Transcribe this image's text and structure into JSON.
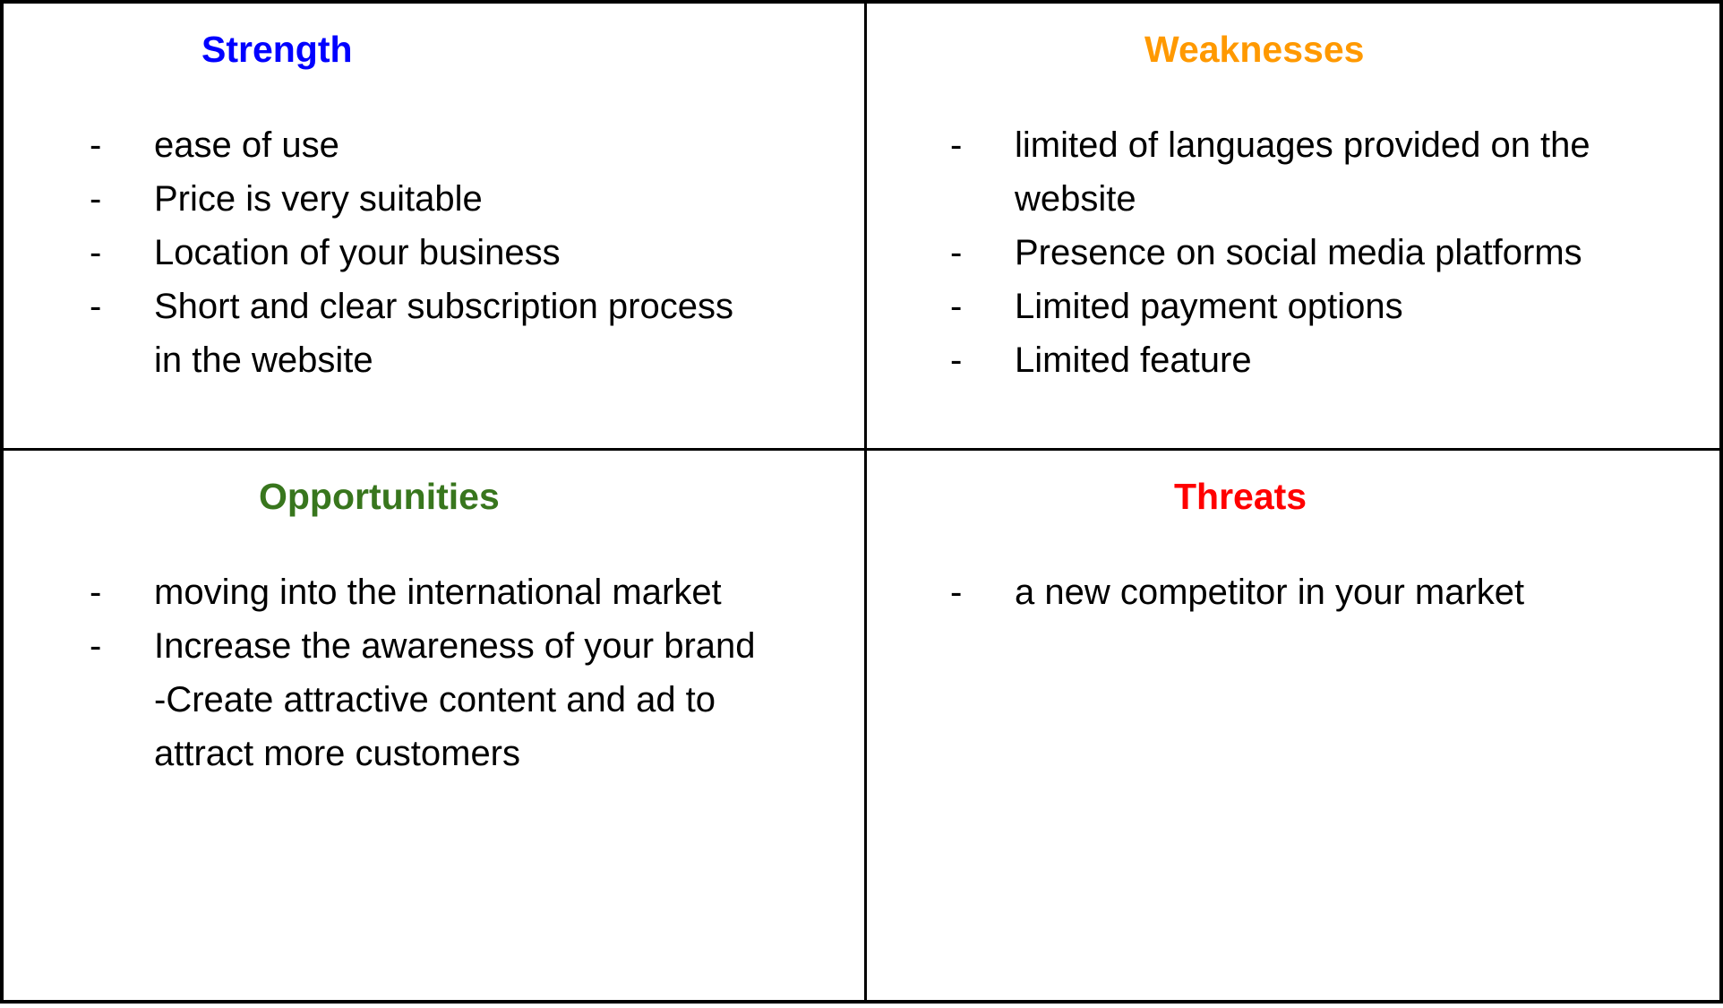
{
  "quadrants": {
    "strength": {
      "title": "Strength",
      "color": "#0000ff",
      "lines": [
        {
          "dash": "-",
          "text": "ease of use"
        },
        {
          "dash": "-",
          "text": "Price is very suitable"
        },
        {
          "dash": "-",
          "text": "Location of your business"
        },
        {
          "dash": "-",
          "text": "Short and clear subscription process"
        },
        {
          "dash": "",
          "text": "in the website"
        }
      ]
    },
    "weaknesses": {
      "title": "Weaknesses",
      "color": "#ff9900",
      "lines": [
        {
          "dash": "-",
          "text": "limited of languages provided on the"
        },
        {
          "dash": "",
          "text": "website"
        },
        {
          "dash": "-",
          "text": "Presence on social media platforms"
        },
        {
          "dash": "-",
          "text": "Limited payment options"
        },
        {
          "dash": "-",
          "text": "Limited feature"
        }
      ]
    },
    "opportunities": {
      "title": "Opportunities",
      "color": "#38761d",
      "lines": [
        {
          "dash": "-",
          "text": "moving into the international market"
        },
        {
          "dash": "-",
          "text": "Increase the awareness of your brand"
        },
        {
          "dash": "",
          "text": "-Create attractive content and ad to"
        },
        {
          "dash": "",
          "text": "attract more customers"
        }
      ]
    },
    "threats": {
      "title": "Threats",
      "color": "#ff0000",
      "lines": [
        {
          "dash": "-",
          "text": "a new competitor in your market"
        }
      ]
    }
  }
}
